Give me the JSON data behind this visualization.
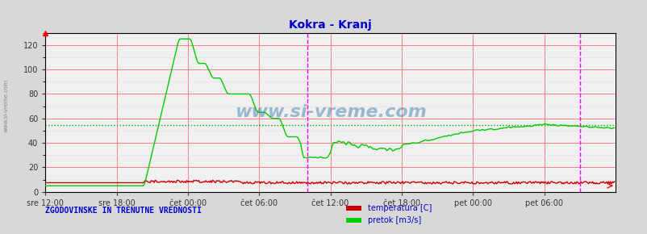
{
  "title": "Kokra - Kranj",
  "title_color": "#0000cc",
  "bg_color": "#d8d8d8",
  "plot_bg_color": "#f0f0f0",
  "grid_color_major": "#ff8080",
  "grid_color_minor": "#e0e0e0",
  "ylabel_left": "",
  "xlabel": "",
  "xlim": [
    0,
    576
  ],
  "ylim": [
    0,
    130
  ],
  "yticks": [
    0,
    20,
    40,
    60,
    80,
    100,
    120
  ],
  "xtick_labels": [
    "sre 12:00",
    "sre 18:00",
    "čet 00:00",
    "čet 06:00",
    "čet 12:00",
    "čet 18:00",
    "pet 00:00",
    "pet 06:00"
  ],
  "xtick_positions": [
    0,
    72,
    144,
    216,
    288,
    360,
    432,
    504
  ],
  "vline_color": "#ff00ff",
  "vline_pos": 265,
  "hline_color": "#00aa00",
  "hline_y": 54.5,
  "hline_style": "dotted",
  "temp_color": "#cc0000",
  "flow_color": "#00cc00",
  "watermark_text": "www.si-vreme.com",
  "watermark_color": "#1a6699",
  "watermark_alpha": 0.4,
  "left_label": "ZGODOVINSKE IN TRENUTNE VREDNOSTI",
  "left_label_color": "#0000cc",
  "legend_labels": [
    "temperatura [C]",
    "pretok [m3/s]"
  ],
  "legend_colors": [
    "#cc0000",
    "#00cc00"
  ],
  "sidebar_text": "www.si-vreme.com",
  "sidebar_color": "#888888"
}
